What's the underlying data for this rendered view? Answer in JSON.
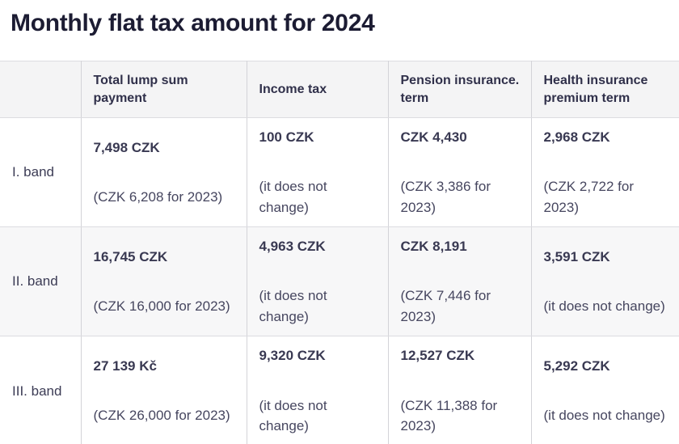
{
  "page": {
    "title": "Monthly flat tax amount for 2024"
  },
  "table": {
    "columns": [
      "",
      "Total lump sum payment",
      "Income tax",
      "Pension insurance. term",
      "Health insurance premium term"
    ],
    "rows": [
      {
        "band": "I. band",
        "cells": [
          {
            "value": "7,498 CZK",
            "note": "(CZK 6,208 for 2023)"
          },
          {
            "value": "100 CZK",
            "note": "(it does not change)"
          },
          {
            "value": "CZK 4,430",
            "note": "(CZK 3,386 for 2023)"
          },
          {
            "value": "2,968 CZK",
            "note": "(CZK 2,722 for 2023)"
          }
        ]
      },
      {
        "band": "II. band",
        "cells": [
          {
            "value": "16,745 CZK",
            "note": "(CZK 16,000 for 2023)"
          },
          {
            "value": "4,963 CZK",
            "note": "(it does not change)"
          },
          {
            "value": "CZK 8,191",
            "note": "(CZK 7,446 for 2023)"
          },
          {
            "value": "3,591 CZK",
            "note": "(it does not change)"
          }
        ]
      },
      {
        "band": "III. band",
        "cells": [
          {
            "value": "27 139 Kč",
            "note": "(CZK 26,000 for 2023)"
          },
          {
            "value": "9,320 CZK",
            "note": "(it does not change)"
          },
          {
            "value": "12,527 CZK",
            "note": "(CZK 11,388 for 2023)"
          },
          {
            "value": "5,292 CZK",
            "note": "(it does not change)"
          }
        ]
      }
    ]
  },
  "colors": {
    "title_text": "#1c1c33",
    "header_bg": "#f4f4f5",
    "alt_row_bg": "#f7f7f8",
    "border": "#dcdce0",
    "body_text": "#40405a"
  }
}
